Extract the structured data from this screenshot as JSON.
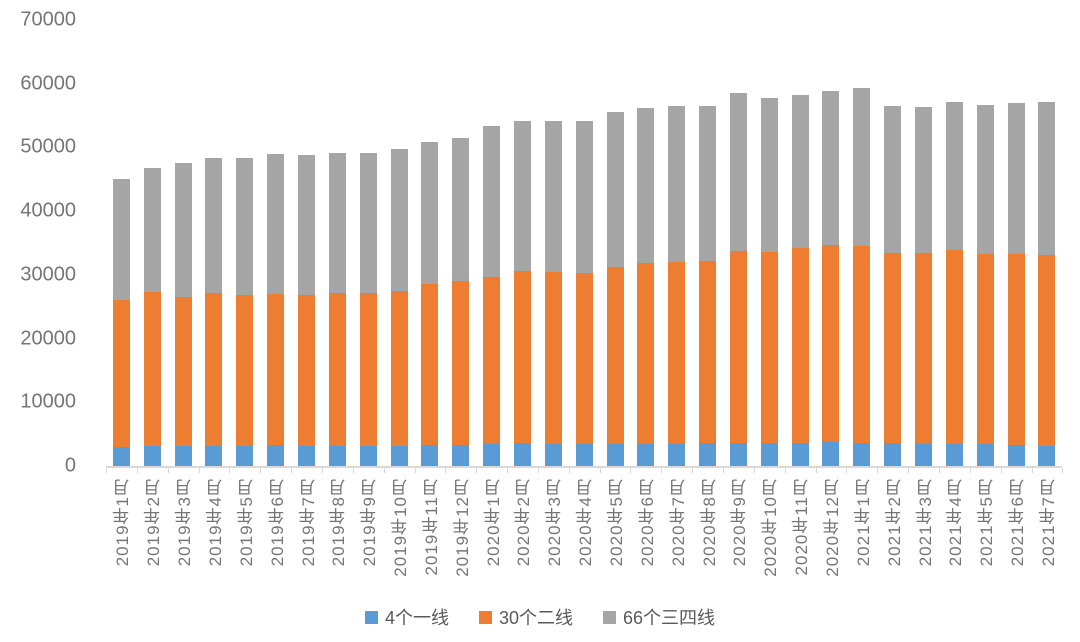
{
  "chart_data": {
    "type": "bar",
    "stacked": true,
    "title": "",
    "xlabel": "",
    "ylabel": "",
    "ylim": [
      0,
      70000
    ],
    "y_ticks": [
      0,
      10000,
      20000,
      30000,
      40000,
      50000,
      60000,
      70000
    ],
    "grid": false,
    "legend_position": "bottom",
    "categories": [
      "2019年1月",
      "2019年2月",
      "2019年3月",
      "2019年4月",
      "2019年5月",
      "2019年6月",
      "2019年7月",
      "2019年8月",
      "2019年9月",
      "2019年10月",
      "2019年11月",
      "2019年12月",
      "2020年1月",
      "2020年2月",
      "2020年3月",
      "2020年4月",
      "2020年5月",
      "2020年6月",
      "2020年7月",
      "2020年8月",
      "2020年9月",
      "2020年10月",
      "2020年11月",
      "2020年12月",
      "2021年1月",
      "2021年2月",
      "2021年3月",
      "2021年4月",
      "2021年5月",
      "2021年6月",
      "2021年7月"
    ],
    "series": [
      {
        "name": "4个一线",
        "color": "#5B9BD5",
        "values": [
          3000,
          3100,
          3100,
          3100,
          3150,
          3250,
          3200,
          3150,
          3150,
          3200,
          3250,
          3300,
          3400,
          3550,
          3500,
          3450,
          3500,
          3500,
          3500,
          3550,
          3650,
          3650,
          3650,
          3800,
          3650,
          3550,
          3400,
          3450,
          3400,
          3300,
          3200
        ]
      },
      {
        "name": "30个二线",
        "color": "#ED7D31",
        "values": [
          23100,
          24200,
          23500,
          24100,
          23650,
          23750,
          23700,
          24050,
          24050,
          24300,
          25350,
          25700,
          26300,
          27050,
          27000,
          26850,
          27700,
          28400,
          28500,
          28650,
          30150,
          29950,
          30550,
          30900,
          30850,
          29850,
          30100,
          30450,
          29900,
          30000,
          29900
        ]
      },
      {
        "name": "66个三四线",
        "color": "#A5A5A5",
        "values": [
          19000,
          19500,
          20900,
          21200,
          21600,
          21900,
          21900,
          21900,
          22000,
          22300,
          22200,
          22500,
          23700,
          23500,
          23700,
          23900,
          24300,
          24300,
          24500,
          24300,
          24800,
          24100,
          24000,
          24200,
          24800,
          23100,
          22900,
          23200,
          23400,
          23600,
          24000
        ]
      }
    ],
    "totals": [
      45100,
      46800,
      47500,
      48400,
      48400,
      48900,
      48800,
      49100,
      49200,
      49800,
      50800,
      51500,
      53400,
      54100,
      54200,
      54200,
      55500,
      56200,
      56500,
      56500,
      58600,
      57700,
      58200,
      58900,
      59300,
      56500,
      56400,
      57100,
      56700,
      56900,
      57100
    ],
    "colors": {
      "axis_line": "#D9D9D9",
      "axis_text": "#757575",
      "legend_text": "#595959",
      "background": "#FFFFFF"
    }
  }
}
